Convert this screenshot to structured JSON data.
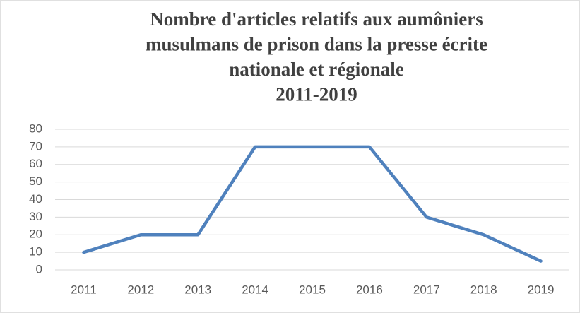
{
  "chart_data": {
    "type": "line",
    "title": [
      "Nombre d'articles relatifs aux aumôniers",
      "musulmans de prison dans la presse écrite",
      "nationale et régionale",
      "2011-2019"
    ],
    "categories": [
      "2011",
      "2012",
      "2013",
      "2014",
      "2015",
      "2016",
      "2017",
      "2018",
      "2019"
    ],
    "values": [
      10,
      20,
      20,
      70,
      70,
      70,
      30,
      20,
      5
    ],
    "color": "#4f81bd",
    "ylim": [
      0,
      80
    ],
    "yticks": [
      0,
      10,
      20,
      30,
      40,
      50,
      60,
      70,
      80
    ],
    "grid": true
  }
}
